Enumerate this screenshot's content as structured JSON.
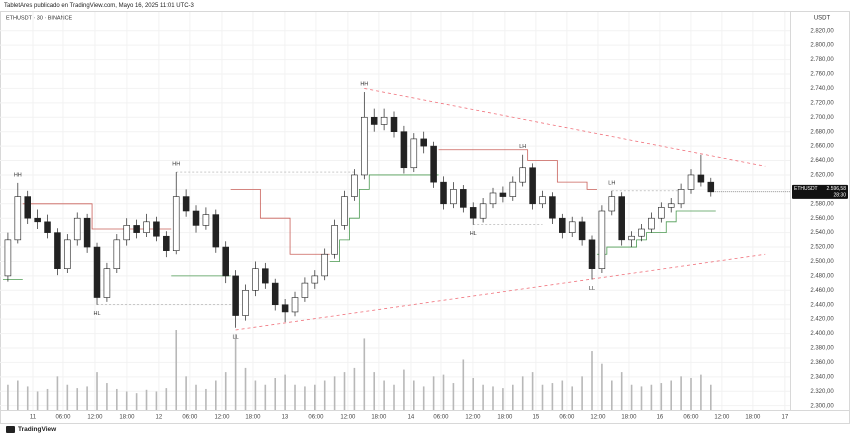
{
  "header": "TabletAres publicado en TradingView.com, Mayo 16, 2025 11:01 UTC-3",
  "footer": "TradingView",
  "chart_data": {
    "type": "candlestick",
    "title": "ETHUSDT · 30 · BINANCE",
    "currency": "USDT",
    "up_color": "#ffffff",
    "down_color": "#222222",
    "wick_color": "#222222",
    "ylim": [
      2294,
      2846
    ],
    "xlim": [
      -0.8,
      79
    ],
    "yticks": [
      {
        "value": 2820,
        "label": "2.820,00"
      },
      {
        "value": 2800,
        "label": "2.800,00"
      },
      {
        "value": 2780,
        "label": "2.780,00"
      },
      {
        "value": 2760,
        "label": "2.760,00"
      },
      {
        "value": 2740,
        "label": "2.740,00"
      },
      {
        "value": 2720,
        "label": "2.720,00"
      },
      {
        "value": 2700,
        "label": "2.700,00"
      },
      {
        "value": 2680,
        "label": "2.680,00"
      },
      {
        "value": 2660,
        "label": "2.660,00"
      },
      {
        "value": 2640,
        "label": "2.640,00"
      },
      {
        "value": 2620,
        "label": "2.620,00"
      },
      {
        "value": 2600,
        "label": "2.600,00"
      },
      {
        "value": 2580,
        "label": "2.580,00"
      },
      {
        "value": 2560,
        "label": "2.560,00"
      },
      {
        "value": 2540,
        "label": "2.540,00"
      },
      {
        "value": 2520,
        "label": "2.520,00"
      },
      {
        "value": 2500,
        "label": "2.500,00"
      },
      {
        "value": 2480,
        "label": "2.480,00"
      },
      {
        "value": 2460,
        "label": "2.460,00"
      },
      {
        "value": 2440,
        "label": "2.440,00"
      },
      {
        "value": 2420,
        "label": "2.420,00"
      },
      {
        "value": 2400,
        "label": "2.400,00"
      },
      {
        "value": 2380,
        "label": "2.380,00"
      },
      {
        "value": 2360,
        "label": "2.360,00"
      },
      {
        "value": 2340,
        "label": "2.340,00"
      },
      {
        "value": 2320,
        "label": "2.320,00"
      },
      {
        "value": 2300,
        "label": "2.300,00"
      }
    ],
    "xticks": [
      {
        "value": 2.53,
        "label": "11"
      },
      {
        "value": 5.56,
        "label": "06:00"
      },
      {
        "value": 8.79,
        "label": "12:00"
      },
      {
        "value": 12.02,
        "label": "18:00"
      },
      {
        "value": 15.25,
        "label": "12"
      },
      {
        "value": 18.38,
        "label": "06:00"
      },
      {
        "value": 21.62,
        "label": "12:00"
      },
      {
        "value": 24.75,
        "label": "18:00"
      },
      {
        "value": 27.98,
        "label": "13"
      },
      {
        "value": 31.11,
        "label": "06:00"
      },
      {
        "value": 34.34,
        "label": "12:00"
      },
      {
        "value": 37.47,
        "label": "18:00"
      },
      {
        "value": 40.71,
        "label": "14"
      },
      {
        "value": 43.74,
        "label": "06:00"
      },
      {
        "value": 46.97,
        "label": "12:00"
      },
      {
        "value": 50.2,
        "label": "18:00"
      },
      {
        "value": 53.33,
        "label": "15"
      },
      {
        "value": 56.46,
        "label": "06:00"
      },
      {
        "value": 59.6,
        "label": "12:00"
      },
      {
        "value": 62.73,
        "label": "18:00"
      },
      {
        "value": 65.86,
        "label": "16"
      },
      {
        "value": 68.99,
        "label": "06:00"
      },
      {
        "value": 72.12,
        "label": "12:00"
      },
      {
        "value": 75.25,
        "label": "18:00"
      },
      {
        "value": 78.48,
        "label": "17"
      }
    ],
    "candles": [
      [
        2480,
        2540,
        2472,
        2530
      ],
      [
        2530,
        2609,
        2525,
        2590
      ],
      [
        2590,
        2598,
        2552,
        2560
      ],
      [
        2560,
        2572,
        2545,
        2555
      ],
      [
        2555,
        2565,
        2532,
        2540
      ],
      [
        2540,
        2546,
        2481,
        2490
      ],
      [
        2490,
        2538,
        2484,
        2530
      ],
      [
        2530,
        2568,
        2522,
        2560
      ],
      [
        2560,
        2566,
        2512,
        2520
      ],
      [
        2520,
        2526,
        2440,
        2450
      ],
      [
        2450,
        2498,
        2444,
        2490
      ],
      [
        2490,
        2538,
        2484,
        2530
      ],
      [
        2530,
        2560,
        2522,
        2550
      ],
      [
        2550,
        2558,
        2532,
        2540
      ],
      [
        2540,
        2566,
        2534,
        2555
      ],
      [
        2555,
        2562,
        2528,
        2535
      ],
      [
        2535,
        2542,
        2506,
        2515
      ],
      [
        2515,
        2624,
        2510,
        2590
      ],
      [
        2590,
        2600,
        2562,
        2570
      ],
      [
        2570,
        2578,
        2540,
        2550
      ],
      [
        2550,
        2575,
        2544,
        2565
      ],
      [
        2565,
        2572,
        2512,
        2520
      ],
      [
        2520,
        2528,
        2470,
        2480
      ],
      [
        2480,
        2488,
        2408,
        2425
      ],
      [
        2425,
        2468,
        2418,
        2460
      ],
      [
        2460,
        2500,
        2452,
        2490
      ],
      [
        2490,
        2498,
        2462,
        2470
      ],
      [
        2470,
        2476,
        2432,
        2440
      ],
      [
        2440,
        2448,
        2416,
        2430
      ],
      [
        2430,
        2458,
        2424,
        2450
      ],
      [
        2450,
        2478,
        2444,
        2470
      ],
      [
        2470,
        2488,
        2462,
        2480
      ],
      [
        2480,
        2518,
        2474,
        2510
      ],
      [
        2510,
        2558,
        2504,
        2550
      ],
      [
        2550,
        2598,
        2544,
        2590
      ],
      [
        2590,
        2628,
        2584,
        2620
      ],
      [
        2620,
        2735,
        2614,
        2700
      ],
      [
        2700,
        2712,
        2680,
        2690
      ],
      [
        2690,
        2712,
        2682,
        2700
      ],
      [
        2700,
        2708,
        2672,
        2680
      ],
      [
        2680,
        2688,
        2622,
        2630
      ],
      [
        2630,
        2678,
        2624,
        2670
      ],
      [
        2670,
        2680,
        2650,
        2660
      ],
      [
        2660,
        2666,
        2602,
        2610
      ],
      [
        2610,
        2618,
        2572,
        2580
      ],
      [
        2580,
        2610,
        2574,
        2600
      ],
      [
        2600,
        2606,
        2568,
        2575
      ],
      [
        2575,
        2582,
        2551,
        2560
      ],
      [
        2560,
        2588,
        2554,
        2580
      ],
      [
        2580,
        2602,
        2574,
        2595
      ],
      [
        2595,
        2604,
        2582,
        2590
      ],
      [
        2590,
        2618,
        2584,
        2610
      ],
      [
        2610,
        2648,
        2604,
        2630
      ],
      [
        2630,
        2636,
        2572,
        2580
      ],
      [
        2580,
        2598,
        2574,
        2590
      ],
      [
        2590,
        2596,
        2552,
        2560
      ],
      [
        2560,
        2566,
        2532,
        2540
      ],
      [
        2540,
        2562,
        2534,
        2555
      ],
      [
        2555,
        2562,
        2522,
        2530
      ],
      [
        2530,
        2536,
        2475,
        2490
      ],
      [
        2490,
        2578,
        2484,
        2570
      ],
      [
        2570,
        2598,
        2564,
        2590
      ],
      [
        2590,
        2596,
        2522,
        2530
      ],
      [
        2530,
        2542,
        2520,
        2535
      ],
      [
        2535,
        2552,
        2528,
        2545
      ],
      [
        2545,
        2568,
        2540,
        2560
      ],
      [
        2560,
        2582,
        2554,
        2575
      ],
      [
        2575,
        2588,
        2568,
        2580
      ],
      [
        2580,
        2608,
        2574,
        2600
      ],
      [
        2600,
        2628,
        2594,
        2620
      ],
      [
        2620,
        2648,
        2604,
        2610
      ],
      [
        2610,
        2616,
        2590,
        2596.58
      ]
    ],
    "volume": [
      30,
      35,
      28,
      22,
      25,
      40,
      30,
      26,
      28,
      45,
      32,
      25,
      22,
      20,
      24,
      22,
      26,
      95,
      40,
      30,
      25,
      35,
      45,
      90,
      50,
      35,
      30,
      38,
      42,
      30,
      28,
      30,
      35,
      40,
      45,
      50,
      85,
      45,
      35,
      30,
      48,
      35,
      28,
      40,
      42,
      32,
      60,
      38,
      30,
      28,
      26,
      30,
      40,
      45,
      30,
      32,
      35,
      28,
      40,
      70,
      55,
      35,
      45,
      30,
      28,
      30,
      32,
      35,
      40,
      38,
      42,
      30
    ],
    "volume_color": "#b8b8b8",
    "support_line": {
      "color": "#4c9a52",
      "values": [
        2475,
        2475,
        null,
        null,
        null,
        null,
        null,
        null,
        null,
        null,
        null,
        null,
        null,
        null,
        null,
        null,
        null,
        2480,
        2480,
        2480,
        2480,
        2480,
        2480,
        null,
        null,
        null,
        null,
        null,
        null,
        null,
        null,
        null,
        null,
        2500,
        2530,
        2560,
        2600,
        2620,
        2620,
        2620,
        2620,
        2620,
        2620,
        2620,
        null,
        null,
        null,
        null,
        null,
        null,
        null,
        null,
        null,
        null,
        null,
        null,
        null,
        null,
        null,
        null,
        2510,
        2520,
        2520,
        2520,
        2530,
        2540,
        2540,
        2555,
        2570,
        2570,
        2570,
        2570
      ]
    },
    "resistance_line": {
      "color": "#c9605a",
      "values": [
        null,
        null,
        2580,
        2580,
        2580,
        2580,
        2580,
        2580,
        2580,
        2545,
        2545,
        2545,
        2545,
        2545,
        2545,
        2545,
        2545,
        null,
        null,
        null,
        null,
        null,
        null,
        2600,
        2600,
        2600,
        2560,
        2560,
        2560,
        2510,
        2510,
        2510,
        2510,
        null,
        null,
        null,
        null,
        null,
        null,
        null,
        null,
        null,
        null,
        null,
        2655,
        2655,
        2655,
        2655,
        2655,
        2655,
        2655,
        2655,
        2655,
        2640,
        2640,
        2640,
        2610,
        2610,
        2610,
        2600,
        null,
        null,
        null,
        null,
        null,
        null,
        null,
        null,
        null,
        null,
        null,
        null
      ]
    },
    "trendlines": [
      {
        "color": "#f0707a",
        "points": [
          [
            36,
            2740
          ],
          [
            76.5,
            2632
          ]
        ]
      },
      {
        "color": "#f0707a",
        "points": [
          [
            23,
            2405
          ],
          [
            76.5,
            2510
          ]
        ]
      }
    ],
    "annotations": [
      {
        "text": "HH",
        "index": 1,
        "price": 2609,
        "side": "above"
      },
      {
        "text": "HL",
        "index": 9,
        "price": 2440,
        "side": "below",
        "extend_to": 23
      },
      {
        "text": "HH",
        "index": 17,
        "price": 2624,
        "side": "above",
        "extend_to": 35
      },
      {
        "text": "LL",
        "index": 23,
        "price": 2408,
        "side": "below"
      },
      {
        "text": "HH",
        "index": 36,
        "price": 2735,
        "side": "above"
      },
      {
        "text": "HL",
        "index": 47,
        "price": 2551,
        "side": "below",
        "extend_to": 54
      },
      {
        "text": "LH",
        "index": 52,
        "price": 2648,
        "side": "above"
      },
      {
        "text": "LL",
        "index": 59,
        "price": 2475,
        "side": "below"
      },
      {
        "text": "LH",
        "index": 61,
        "price": 2598,
        "side": "above",
        "extend_to": 68
      }
    ],
    "last_price": {
      "symbol": "ETHUSDT",
      "label": "2.596,58",
      "countdown": "28:30"
    }
  }
}
